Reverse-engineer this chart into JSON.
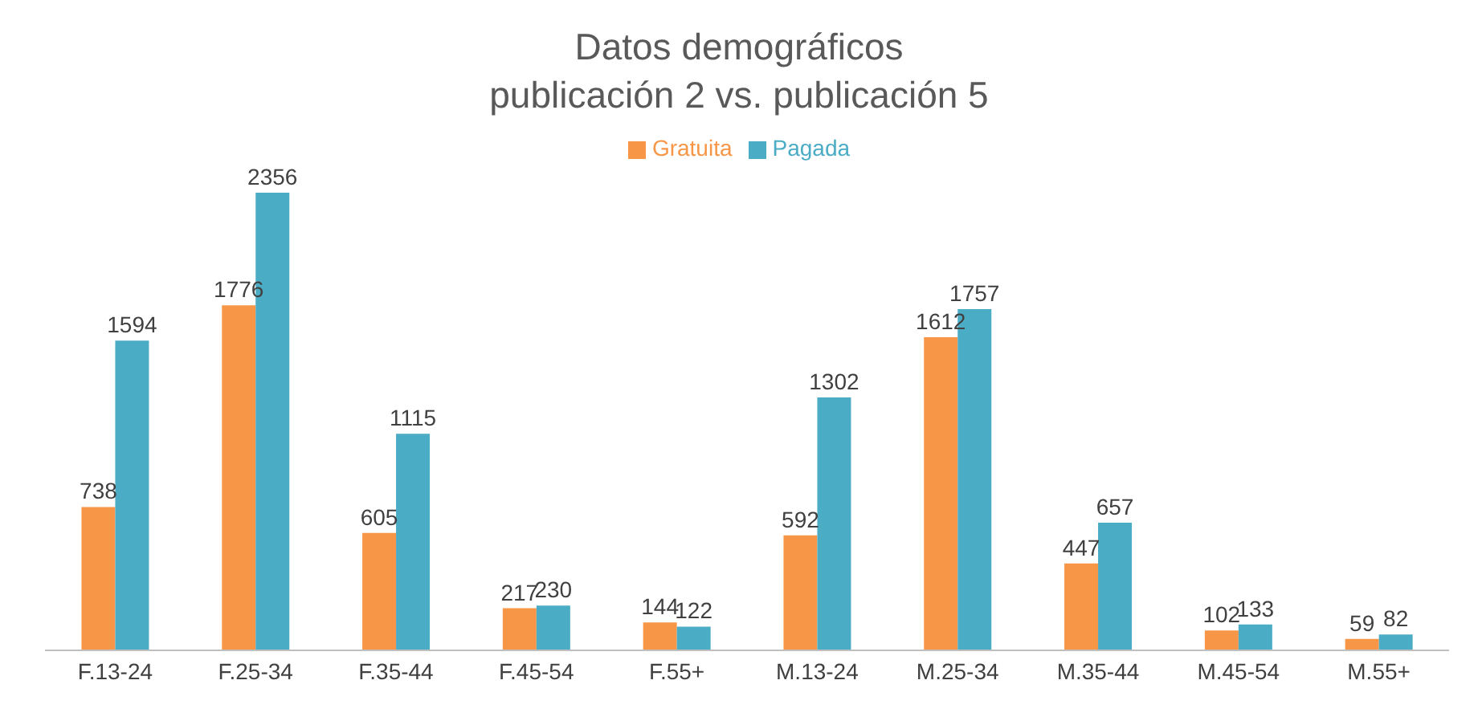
{
  "chart_data": {
    "type": "bar",
    "title": "Datos demográficos\npublicación 2 vs. publicación 5",
    "categories": [
      "F.13-24",
      "F.25-34",
      "F.35-44",
      "F.45-54",
      "F.55+",
      "M.13-24",
      "M.25-34",
      "M.35-44",
      "M.45-54",
      "M.55+"
    ],
    "series": [
      {
        "name": "Gratuita",
        "color": "#f79646",
        "values": [
          738,
          1776,
          605,
          217,
          144,
          592,
          1612,
          447,
          102,
          59
        ]
      },
      {
        "name": "Pagada",
        "color": "#4bacc6",
        "values": [
          1594,
          2356,
          1115,
          230,
          122,
          1302,
          1757,
          657,
          133,
          82
        ]
      }
    ],
    "data_labels": true,
    "legend": "top",
    "grid": false
  }
}
